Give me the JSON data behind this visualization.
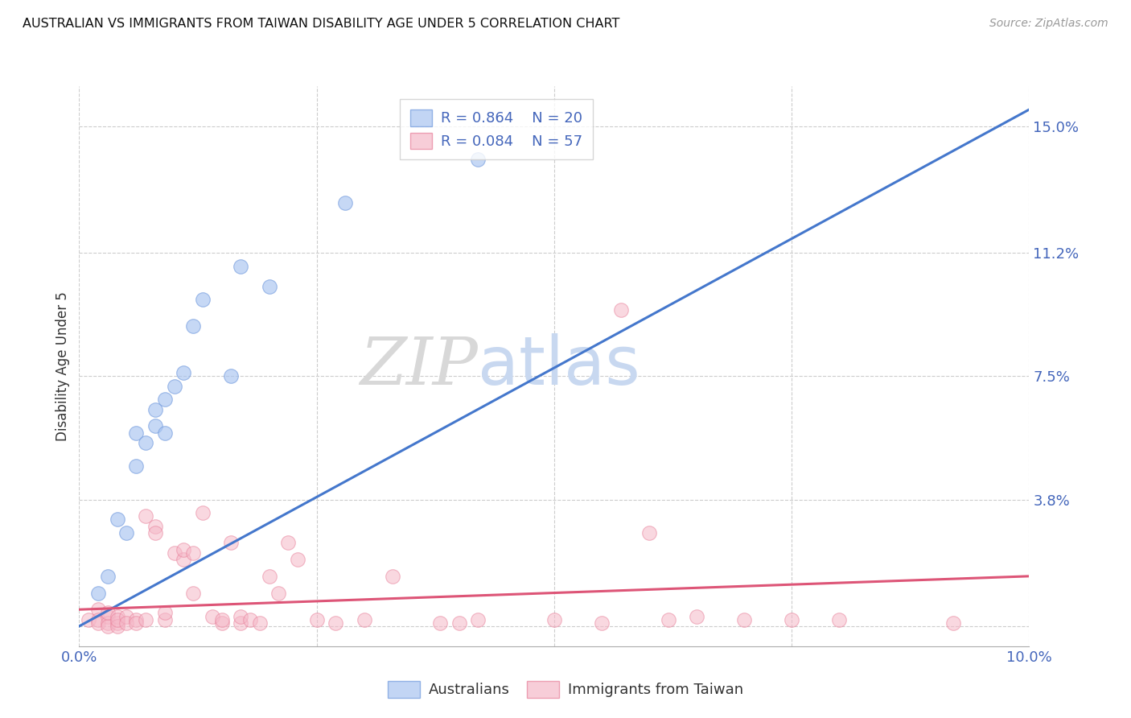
{
  "title": "AUSTRALIAN VS IMMIGRANTS FROM TAIWAN DISABILITY AGE UNDER 5 CORRELATION CHART",
  "source": "Source: ZipAtlas.com",
  "ylabel": "Disability Age Under 5",
  "xlim": [
    0.0,
    0.1
  ],
  "ylim": [
    -0.006,
    0.162
  ],
  "xticks": [
    0.0,
    0.025,
    0.05,
    0.075,
    0.1
  ],
  "xticklabels": [
    "0.0%",
    "",
    "",
    "",
    "10.0%"
  ],
  "ytick_vals": [
    0.0,
    0.038,
    0.075,
    0.112,
    0.15
  ],
  "ytick_labels": [
    "",
    "3.8%",
    "7.5%",
    "11.2%",
    "15.0%"
  ],
  "grid_color": "#cccccc",
  "background_color": "#ffffff",
  "watermark_zip": "ZIP",
  "watermark_atlas": "atlas",
  "legend_r1": "R = 0.864",
  "legend_n1": "N = 20",
  "legend_r2": "R = 0.084",
  "legend_n2": "N = 57",
  "blue_color": "#a8c4f0",
  "pink_color": "#f5b8c8",
  "blue_edge_color": "#7099dd",
  "pink_edge_color": "#e8809a",
  "blue_line_color": "#4477cc",
  "pink_line_color": "#dd5577",
  "blue_scatter": [
    [
      0.002,
      0.01
    ],
    [
      0.003,
      0.015
    ],
    [
      0.004,
      0.032
    ],
    [
      0.005,
      0.028
    ],
    [
      0.006,
      0.048
    ],
    [
      0.006,
      0.058
    ],
    [
      0.007,
      0.055
    ],
    [
      0.008,
      0.06
    ],
    [
      0.008,
      0.065
    ],
    [
      0.009,
      0.068
    ],
    [
      0.009,
      0.058
    ],
    [
      0.01,
      0.072
    ],
    [
      0.011,
      0.076
    ],
    [
      0.012,
      0.09
    ],
    [
      0.013,
      0.098
    ],
    [
      0.016,
      0.075
    ],
    [
      0.017,
      0.108
    ],
    [
      0.02,
      0.102
    ],
    [
      0.028,
      0.127
    ],
    [
      0.042,
      0.14
    ]
  ],
  "pink_scatter": [
    [
      0.001,
      0.002
    ],
    [
      0.002,
      0.005
    ],
    [
      0.002,
      0.002
    ],
    [
      0.002,
      0.001
    ],
    [
      0.003,
      0.003
    ],
    [
      0.003,
      0.001
    ],
    [
      0.003,
      0.0
    ],
    [
      0.003,
      0.004
    ],
    [
      0.004,
      0.001
    ],
    [
      0.004,
      0.003
    ],
    [
      0.004,
      0.0
    ],
    [
      0.004,
      0.002
    ],
    [
      0.005,
      0.003
    ],
    [
      0.005,
      0.001
    ],
    [
      0.006,
      0.002
    ],
    [
      0.006,
      0.001
    ],
    [
      0.007,
      0.002
    ],
    [
      0.007,
      0.033
    ],
    [
      0.008,
      0.03
    ],
    [
      0.008,
      0.028
    ],
    [
      0.009,
      0.002
    ],
    [
      0.009,
      0.004
    ],
    [
      0.01,
      0.022
    ],
    [
      0.011,
      0.02
    ],
    [
      0.011,
      0.023
    ],
    [
      0.012,
      0.022
    ],
    [
      0.012,
      0.01
    ],
    [
      0.013,
      0.034
    ],
    [
      0.014,
      0.003
    ],
    [
      0.015,
      0.001
    ],
    [
      0.015,
      0.002
    ],
    [
      0.016,
      0.025
    ],
    [
      0.017,
      0.001
    ],
    [
      0.017,
      0.003
    ],
    [
      0.018,
      0.002
    ],
    [
      0.019,
      0.001
    ],
    [
      0.02,
      0.015
    ],
    [
      0.021,
      0.01
    ],
    [
      0.022,
      0.025
    ],
    [
      0.023,
      0.02
    ],
    [
      0.025,
      0.002
    ],
    [
      0.027,
      0.001
    ],
    [
      0.03,
      0.002
    ],
    [
      0.033,
      0.015
    ],
    [
      0.038,
      0.001
    ],
    [
      0.04,
      0.001
    ],
    [
      0.042,
      0.002
    ],
    [
      0.05,
      0.002
    ],
    [
      0.055,
      0.001
    ],
    [
      0.057,
      0.095
    ],
    [
      0.06,
      0.028
    ],
    [
      0.062,
      0.002
    ],
    [
      0.065,
      0.003
    ],
    [
      0.07,
      0.002
    ],
    [
      0.075,
      0.002
    ],
    [
      0.08,
      0.002
    ],
    [
      0.092,
      0.001
    ]
  ],
  "blue_trend_x": [
    0.0,
    0.1
  ],
  "blue_trend_y": [
    0.0,
    0.155
  ],
  "pink_trend_x": [
    0.0,
    0.1
  ],
  "pink_trend_y": [
    0.005,
    0.015
  ]
}
